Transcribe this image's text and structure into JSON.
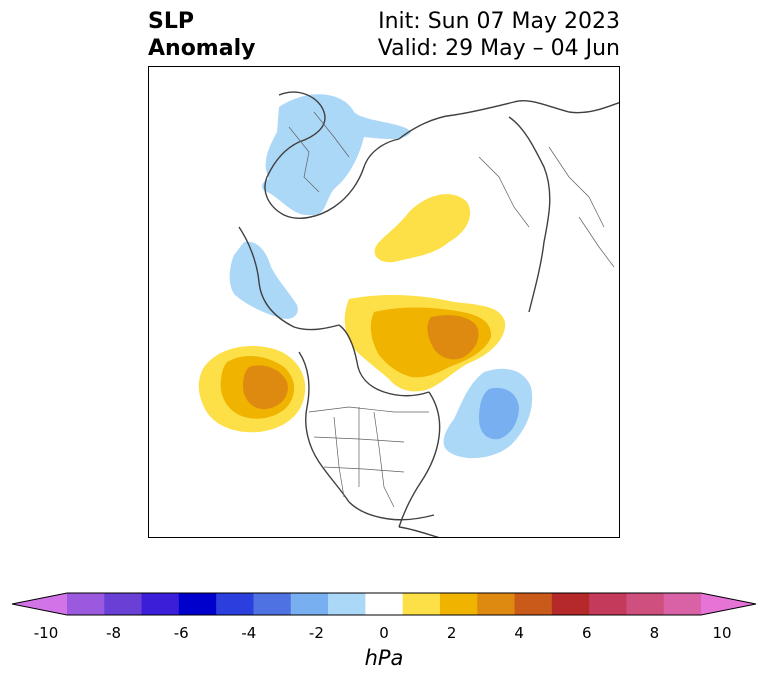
{
  "header": {
    "title_line1": "SLP",
    "title_line2": "Anomaly",
    "init_text": "Init: Sun 07 May 2023",
    "valid_text": "Valid: 29 May – 04 Jun"
  },
  "map": {
    "projection": "polar stereographic",
    "region": "North America / Arctic",
    "features": [
      "coastlines",
      "country borders",
      "state/province borders"
    ],
    "anomaly_regions": [
      {
        "name": "Scandinavia / Northern Europe low",
        "sign": "negative",
        "peak_hpa": -2
      },
      {
        "name": "Central Siberia high",
        "sign": "positive",
        "peak_hpa": 2
      },
      {
        "name": "Alaska / Bering low",
        "sign": "negative",
        "peak_hpa": -2
      },
      {
        "name": "Greenland / Arctic Canada high",
        "sign": "positive",
        "peak_hpa": 5
      },
      {
        "name": "Northeast Pacific high",
        "sign": "positive",
        "peak_hpa": 4
      },
      {
        "name": "Western Atlantic low",
        "sign": "negative",
        "peak_hpa": -4
      }
    ]
  },
  "colorbar": {
    "unit": "hPa",
    "ticks": [
      "-10",
      "-8",
      "-6",
      "-4",
      "-2",
      "0",
      "2",
      "4",
      "6",
      "8",
      "10"
    ],
    "colors": [
      "#d273e8",
      "#9b59e0",
      "#6a3fd6",
      "#3a1ed8",
      "#0000cd",
      "#2a3fdd",
      "#4f72e3",
      "#78aff0",
      "#acd8f8",
      "#ffffff",
      "#fde047",
      "#f0b400",
      "#de8a10",
      "#c95a1a",
      "#b5292b",
      "#c43a5a",
      "#cf4f7e",
      "#d962a6",
      "#e673d6"
    ]
  }
}
